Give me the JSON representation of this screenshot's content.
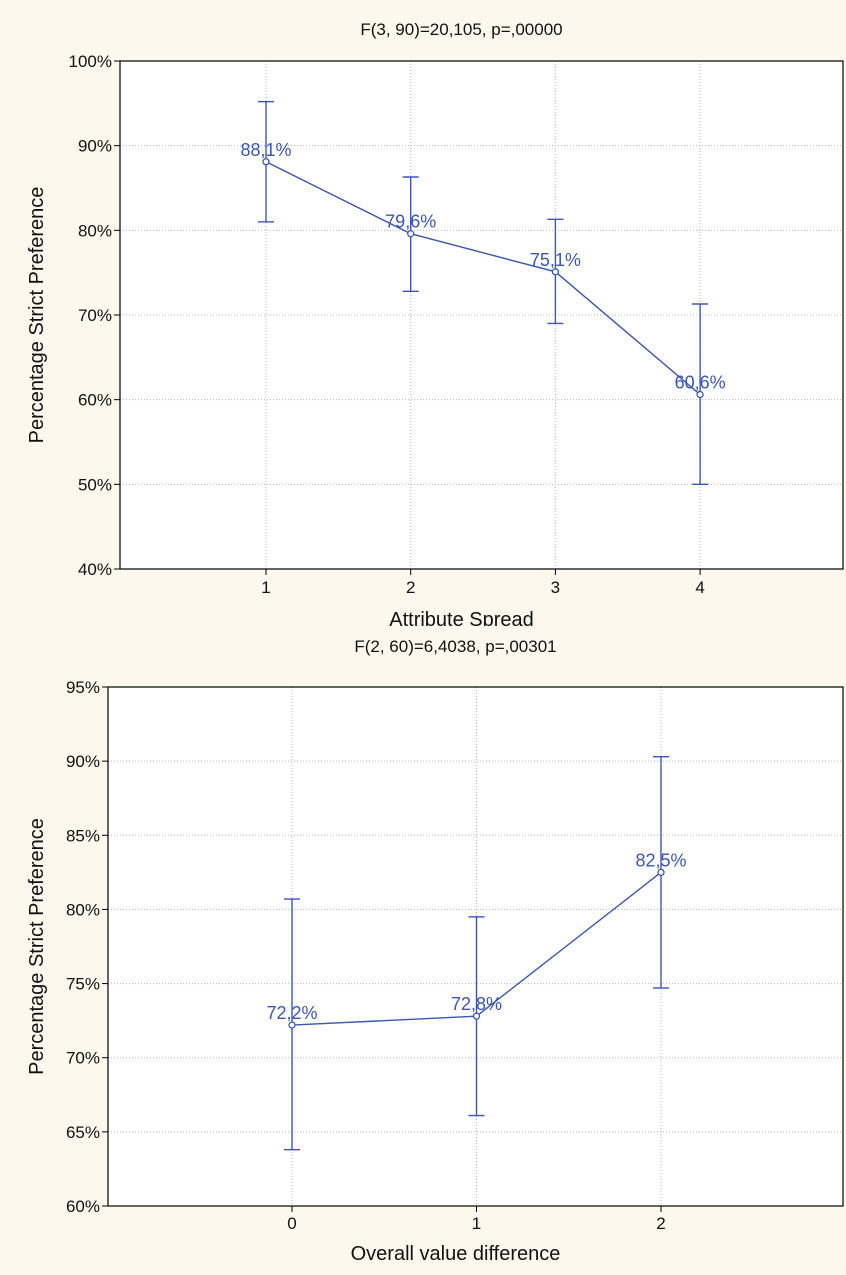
{
  "chart_data": [
    {
      "type": "line",
      "title": "F(3, 90)=20,105, p=,00000",
      "xlabel": "Attribute Spread",
      "ylabel": "Percentage Strict Preference",
      "categories": [
        "1",
        "2",
        "3",
        "4"
      ],
      "values": [
        88.1,
        79.6,
        75.1,
        60.6
      ],
      "error_upper": [
        95.2,
        86.3,
        81.3,
        71.3
      ],
      "error_lower": [
        81.0,
        72.8,
        69.0,
        50.0
      ],
      "data_labels": [
        "88,1%",
        "79,6%",
        "75,1%",
        "60,6%"
      ],
      "ylim": [
        40,
        100
      ],
      "yticks": [
        40,
        50,
        60,
        70,
        80,
        90,
        100
      ],
      "ytick_labels": [
        "40%",
        "50%",
        "60%",
        "70%",
        "80%",
        "90%",
        "100%"
      ],
      "grid": true,
      "colors": {
        "line": "#3a57b3",
        "label": "#3a57b3",
        "plot_bg": "#ffffff",
        "outer_bg": "#fdf8ee",
        "grid": "#b5b5b5"
      }
    },
    {
      "type": "line",
      "title": "F(2, 60)=6,4038, p=,00301",
      "xlabel": "Overall value difference",
      "ylabel": "Percentage Strict Preference",
      "categories": [
        "0",
        "1",
        "2"
      ],
      "values": [
        72.2,
        72.8,
        82.5
      ],
      "error_upper": [
        80.7,
        79.5,
        90.3
      ],
      "error_lower": [
        63.8,
        66.1,
        74.7
      ],
      "data_labels": [
        "72,2%",
        "72,8%",
        "82,5%"
      ],
      "ylim": [
        60,
        95
      ],
      "yticks": [
        60,
        65,
        70,
        75,
        80,
        85,
        90,
        95
      ],
      "ytick_labels": [
        "60%",
        "65%",
        "70%",
        "75%",
        "80%",
        "85%",
        "90%",
        "95%"
      ],
      "grid": true,
      "colors": {
        "line": "#3a57b3",
        "label": "#3a57b3",
        "plot_bg": "#ffffff",
        "outer_bg": "#fdf8ee",
        "grid": "#b5b5b5"
      }
    }
  ]
}
